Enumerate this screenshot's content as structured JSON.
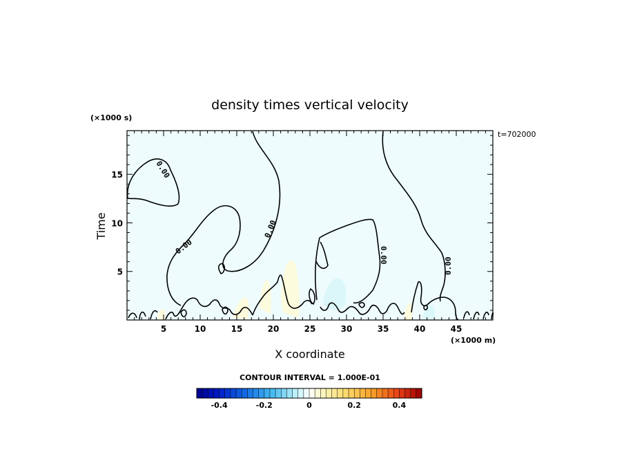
{
  "chart_data": {
    "type": "heatmap",
    "title": "density times vertical velocity",
    "xlabel": "X coordinate",
    "ylabel": "Time",
    "x_unit": "(×1000 m)",
    "y_unit": "(×1000 s)",
    "time_stamp": "t=702000",
    "xlim": [
      0,
      50
    ],
    "ylim": [
      0,
      19.5
    ],
    "x_ticks": [
      "5",
      "10",
      "15",
      "20",
      "25",
      "30",
      "35",
      "40",
      "45"
    ],
    "y_ticks": [
      "5",
      "10",
      "15"
    ],
    "contour_label": "0.00",
    "contour_interval_text": "CONTOUR INTERVAL = 1.000E-01",
    "colorbar": {
      "min": -0.5,
      "max": 0.5,
      "step": 0.025,
      "tick_labels": [
        "-0.4",
        "-0.2",
        "0",
        "0.2",
        "0.4"
      ],
      "tick_values": [
        -0.4,
        -0.2,
        0,
        0.2,
        0.4
      ]
    },
    "background_value": -0.02,
    "colors": {
      "background_fill": "#eefcfd",
      "contour": "#000000",
      "positive_patch": "#fdfbdd",
      "negative_patch": "#dcf7fa"
    }
  }
}
